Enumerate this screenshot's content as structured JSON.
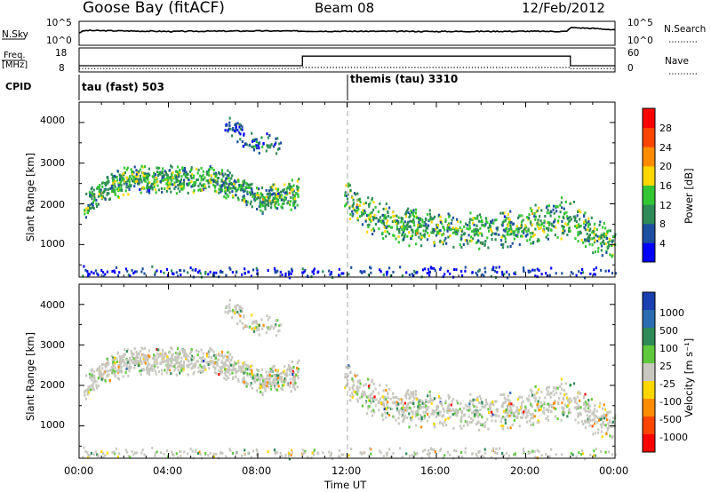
{
  "header": {
    "station": "Goose Bay (fitACF)",
    "beam": "Beam 08",
    "date": "12/Feb/2012"
  },
  "noise_panel": {
    "left_label": "N.Sky",
    "right_label": "N.Search",
    "ticks_left": [
      "10^5",
      "10^0"
    ],
    "ticks_right": [
      "10^5",
      "10^0"
    ]
  },
  "freq_panel": {
    "left_label_1": "Freq.",
    "left_label_2": "[MHz]",
    "ticks_left": [
      "18",
      "8"
    ],
    "right_label": "Nave",
    "ticks_right": [
      "60",
      "0"
    ]
  },
  "cpid_panel": {
    "label": "CPID",
    "modes": [
      {
        "name": "tau (fast) 503",
        "start_hour": 0
      },
      {
        "name": "themis (tau) 3310",
        "start_hour": 12
      }
    ]
  },
  "x_axis": {
    "label": "Time UT",
    "ticks": [
      "00:00",
      "04:00",
      "08:00",
      "12:00",
      "16:00",
      "20:00",
      "00:00"
    ],
    "range_hours": [
      0,
      24
    ]
  },
  "power_panel": {
    "ylabel": "Slant Range [km]",
    "yticks": [
      "4000",
      "3000",
      "2000",
      "1000"
    ],
    "colorbar_label": "Power [dB]",
    "colorbar_ticks": [
      "28",
      "24",
      "20",
      "16",
      "12",
      "8",
      "4"
    ],
    "colors": [
      "#0000ff",
      "#1c4fa0",
      "#2e8b57",
      "#33c633",
      "#ffd700",
      "#ff8c00",
      "#ff4500",
      "#ff0000"
    ]
  },
  "velocity_panel": {
    "ylabel": "Slant Range [km]",
    "yticks": [
      "4000",
      "3000",
      "2000",
      "1000"
    ],
    "colorbar_label": "Velocity [m s⁻¹]",
    "colorbar_ticks": [
      "1000",
      "500",
      "100",
      "25",
      "-25",
      "-100",
      "-500",
      "-1000"
    ],
    "colors": [
      "#1a3fb0",
      "#2b6cb0",
      "#2e8b57",
      "#5ec93c",
      "#c8c8c0",
      "#ffd700",
      "#ff8c00",
      "#ff4500",
      "#ff0000"
    ]
  },
  "chart_data": {
    "type": "heatmap",
    "x_unit": "hours UT",
    "y_unit": "km",
    "ylim": [
      200,
      4500
    ],
    "xlim": [
      0,
      24
    ],
    "noise_sky": [
      [
        0,
        400
      ],
      [
        0.3,
        1500
      ],
      [
        4,
        900
      ],
      [
        8,
        1200
      ],
      [
        12,
        1000
      ],
      [
        16,
        900
      ],
      [
        20,
        1000
      ],
      [
        21.9,
        900
      ],
      [
        22,
        8000
      ],
      [
        24,
        2000
      ]
    ],
    "frequency_mhz": [
      [
        0,
        10.5
      ],
      [
        10,
        10.5
      ],
      [
        10,
        15
      ],
      [
        22,
        15
      ],
      [
        22,
        10.5
      ],
      [
        24,
        10.5
      ]
    ],
    "nave": [
      [
        0,
        7
      ],
      [
        9.8,
        7
      ],
      [
        10,
        10
      ],
      [
        22,
        10
      ],
      [
        22,
        7
      ],
      [
        24,
        7
      ]
    ],
    "scatter_regions": [
      {
        "name": "band_a",
        "x": [
          0.2,
          9.8
        ],
        "center_km": [
          [
            0.2,
            1950
          ],
          [
            1,
            2350
          ],
          [
            2,
            2620
          ],
          [
            4,
            2650
          ],
          [
            6,
            2620
          ],
          [
            7,
            2450
          ],
          [
            8,
            2150
          ],
          [
            9,
            2200
          ],
          [
            9.8,
            2300
          ]
        ],
        "width_km": 380,
        "mean_power_db": 12
      },
      {
        "name": "band_b",
        "x": [
          11.8,
          24
        ],
        "center_km": [
          [
            11.8,
            2200
          ],
          [
            13,
            1700
          ],
          [
            15,
            1450
          ],
          [
            18,
            1350
          ],
          [
            20,
            1450
          ],
          [
            21.8,
            1700
          ],
          [
            23,
            1300
          ],
          [
            24,
            1000
          ]
        ],
        "width_km": 520,
        "mean_power_db": 12
      },
      {
        "name": "cluster_high",
        "x": [
          6.5,
          9
        ],
        "center_km": [
          [
            6.5,
            4000
          ],
          [
            8,
            3500
          ]
        ],
        "width_km": 300,
        "mean_power_db": 6
      },
      {
        "name": "near_range",
        "x": [
          0,
          24
        ],
        "center_km": [
          [
            0,
            350
          ],
          [
            24,
            350
          ]
        ],
        "width_km": 150,
        "mean_power_db": 4
      }
    ]
  }
}
